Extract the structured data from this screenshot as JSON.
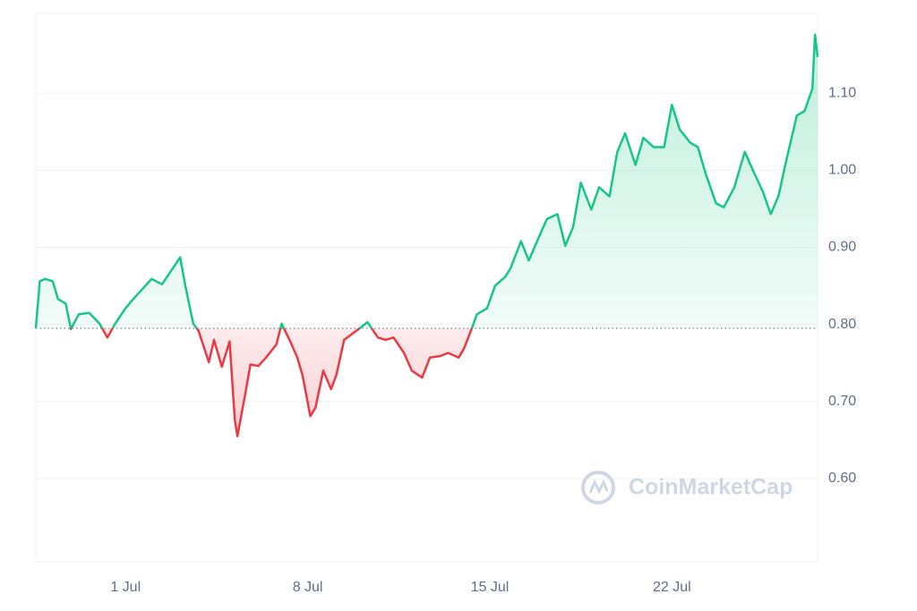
{
  "chart_data": {
    "type": "line",
    "watermark": "CoinMarketCap",
    "x": [
      -2.45,
      -2.3,
      -2.1,
      -1.8,
      -1.6,
      -1.3,
      -1.1,
      -0.8,
      -0.4,
      0.0,
      0.3,
      0.6,
      1.0,
      1.3,
      1.7,
      2.0,
      2.4,
      2.7,
      3.1,
      3.3,
      3.6,
      3.8,
      4.2,
      4.4,
      4.7,
      5.0,
      5.2,
      5.3,
      5.6,
      5.8,
      6.1,
      6.4,
      6.8,
      7.0,
      7.3,
      7.6,
      7.8,
      8.1,
      8.3,
      8.6,
      8.9,
      9.1,
      9.4,
      9.8,
      10.0,
      10.3,
      10.7,
      11.0,
      11.3,
      11.7,
      12.0,
      12.4,
      12.7,
      13.1,
      13.4,
      13.8,
      14.0,
      14.3,
      14.5,
      14.9,
      15.2,
      15.6,
      15.8,
      16.2,
      16.5,
      16.9,
      17.2,
      17.6,
      17.9,
      18.2,
      18.5,
      18.9,
      19.2,
      19.6,
      19.9,
      20.2,
      20.6,
      20.9,
      21.3,
      21.7,
      22.0,
      22.3,
      22.7,
      23.0,
      23.3,
      23.7,
      24.0,
      24.4,
      24.8,
      25.1,
      25.5,
      25.8,
      26.1,
      26.4,
      26.8,
      27.1,
      27.4,
      27.5,
      27.6
    ],
    "values": [
      0.795,
      0.856,
      0.859,
      0.856,
      0.833,
      0.827,
      0.794,
      0.813,
      0.815,
      0.801,
      0.783,
      0.801,
      0.821,
      0.833,
      0.848,
      0.859,
      0.852,
      0.867,
      0.887,
      0.85,
      0.801,
      0.792,
      0.751,
      0.78,
      0.745,
      0.778,
      0.676,
      0.655,
      0.71,
      0.748,
      0.746,
      0.757,
      0.774,
      0.801,
      0.78,
      0.757,
      0.734,
      0.681,
      0.692,
      0.74,
      0.716,
      0.734,
      0.78,
      0.79,
      0.795,
      0.803,
      0.783,
      0.78,
      0.783,
      0.763,
      0.74,
      0.731,
      0.757,
      0.759,
      0.763,
      0.757,
      0.768,
      0.794,
      0.813,
      0.821,
      0.85,
      0.862,
      0.873,
      0.908,
      0.883,
      0.914,
      0.937,
      0.943,
      0.902,
      0.926,
      0.984,
      0.949,
      0.978,
      0.966,
      1.024,
      1.048,
      1.007,
      1.042,
      1.03,
      1.03,
      1.085,
      1.053,
      1.036,
      1.03,
      0.995,
      0.957,
      0.952,
      0.978,
      1.024,
      1.001,
      0.972,
      0.943,
      0.967,
      1.013,
      1.071,
      1.077,
      1.106,
      1.176,
      1.147
    ],
    "baseline": 0.795,
    "up_color": "#16c784",
    "down_color": "#ea3943",
    "xlim": [
      -2.45,
      27.6
    ],
    "xticks": [
      {
        "value": 1,
        "label": "1 Jul"
      },
      {
        "value": 8,
        "label": "8 Jul"
      },
      {
        "value": 15,
        "label": "15 Jul"
      },
      {
        "value": 22,
        "label": "22 Jul"
      }
    ],
    "ylim": [
      0.492,
      1.2035
    ],
    "yticks": [
      {
        "value": 0.6,
        "label": "0.60"
      },
      {
        "value": 0.7,
        "label": "0.70"
      },
      {
        "value": 0.8,
        "label": "0.80"
      },
      {
        "value": 0.9,
        "label": "0.90"
      },
      {
        "value": 1.0,
        "label": "1.00"
      },
      {
        "value": 1.1,
        "label": "1.10"
      }
    ],
    "grid": true
  }
}
